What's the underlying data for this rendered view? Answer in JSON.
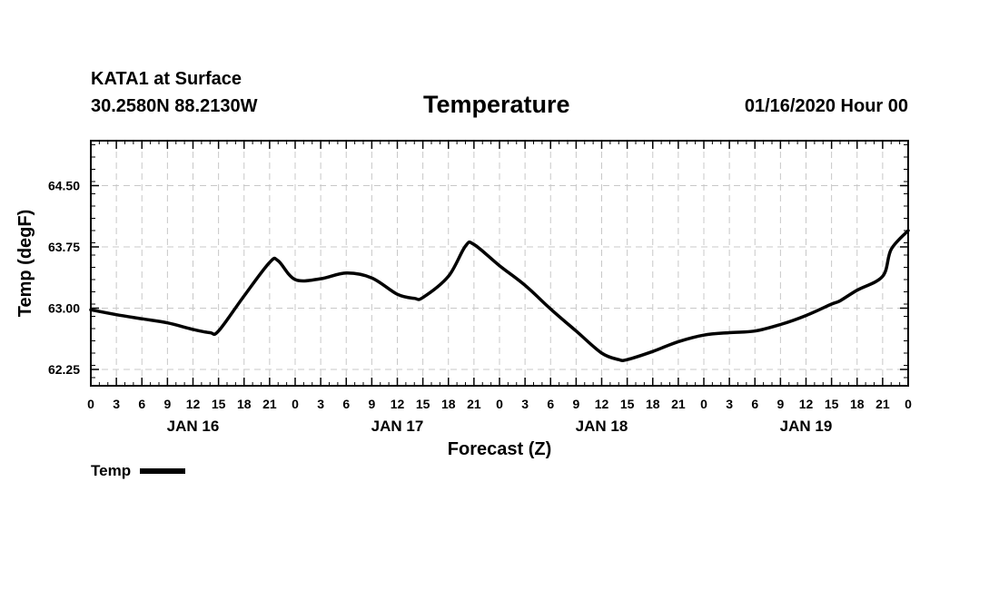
{
  "header": {
    "station": "KATA1 at Surface",
    "coords": "30.2580N 88.2130W",
    "title": "Temperature",
    "runtime": "01/16/2020 Hour 00"
  },
  "chart_data": {
    "type": "line",
    "title": "Temperature",
    "xlabel": "Forecast (Z)",
    "ylabel": "Temp (degF)",
    "x_unit": "hours since 01/16/2020 00Z",
    "xlim": [
      0,
      96
    ],
    "ylim": [
      62.05,
      65.05
    ],
    "yticks": [
      62.25,
      63.0,
      63.75,
      64.5
    ],
    "ytick_labels": [
      "62.25",
      "63.00",
      "63.75",
      "64.50"
    ],
    "xtick_labels": [
      "0",
      "3",
      "6",
      "9",
      "12",
      "15",
      "18",
      "21",
      "0",
      "3",
      "6",
      "9",
      "12",
      "15",
      "18",
      "21",
      "0",
      "3",
      "6",
      "9",
      "12",
      "15",
      "18",
      "21",
      "0",
      "3",
      "6",
      "9",
      "12",
      "15",
      "18",
      "21",
      "0"
    ],
    "day_labels": [
      {
        "label": "JAN 16",
        "hour": 12
      },
      {
        "label": "JAN 17",
        "hour": 36
      },
      {
        "label": "JAN 18",
        "hour": 60
      },
      {
        "label": "JAN 19",
        "hour": 84
      }
    ],
    "grid": true,
    "legend": "bottom-left",
    "series": [
      {
        "name": "Temp",
        "color": "#000000",
        "x": [
          0,
          3,
          6,
          9,
          12,
          14,
          15,
          18,
          21,
          22,
          24,
          27,
          30,
          33,
          36,
          38,
          39,
          42,
          44,
          45,
          48,
          51,
          54,
          57,
          60,
          62,
          63,
          66,
          69,
          72,
          75,
          78,
          81,
          84,
          87,
          88,
          90,
          93,
          94,
          96
        ],
        "values": [
          62.98,
          62.92,
          62.87,
          62.82,
          62.74,
          62.7,
          62.72,
          63.15,
          63.56,
          63.58,
          63.35,
          63.36,
          63.43,
          63.37,
          63.17,
          63.12,
          63.13,
          63.39,
          63.76,
          63.78,
          63.52,
          63.28,
          62.99,
          62.72,
          62.45,
          62.37,
          62.37,
          62.47,
          62.59,
          62.67,
          62.7,
          62.72,
          62.8,
          62.91,
          63.05,
          63.09,
          63.22,
          63.39,
          63.72,
          63.95
        ]
      }
    ]
  },
  "legend": {
    "label": "Temp"
  }
}
